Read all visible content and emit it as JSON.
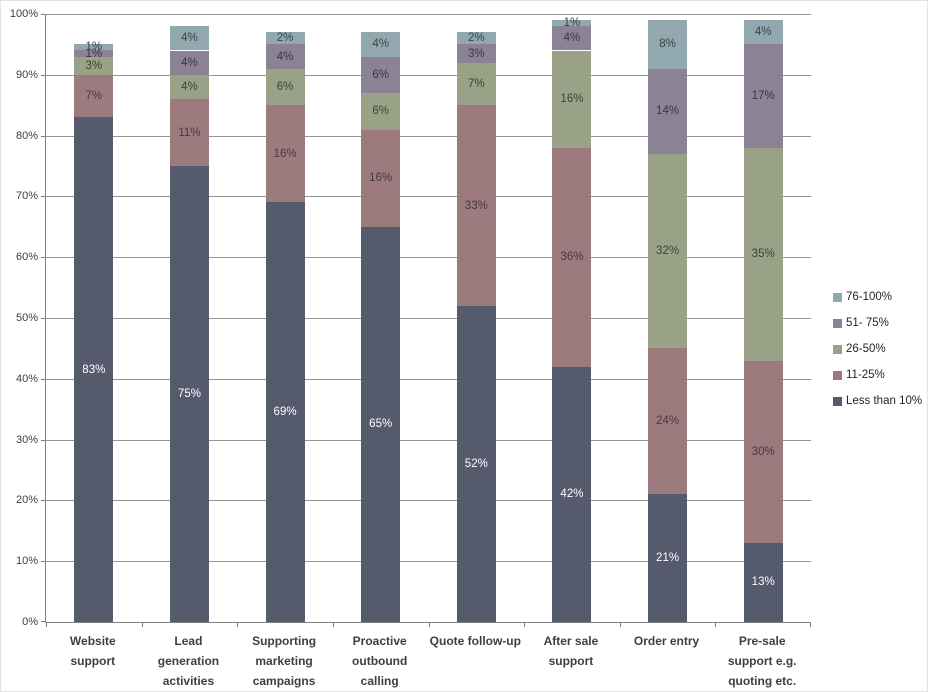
{
  "chart_data": {
    "type": "bar",
    "subtype": "stacked-column-percent",
    "title": "",
    "xlabel": "",
    "ylabel": "",
    "grid": true,
    "categories": [
      "Website support",
      "Lead generation activities",
      "Supporting marketing campaigns",
      "Proactive outbound calling",
      "Quote follow-up",
      "After sale support",
      "Order entry",
      "Pre-sale support e.g. quoting etc."
    ],
    "series": [
      {
        "name": "Less than 10%",
        "color": "#555b6d",
        "label_color": "#ffffff",
        "values": [
          83,
          75,
          69,
          65,
          52,
          42,
          21,
          13
        ]
      },
      {
        "name": "11-25%",
        "color": "#9c7a7e",
        "label_color": "#453a3c",
        "values": [
          7,
          11,
          16,
          16,
          33,
          36,
          24,
          30
        ]
      },
      {
        "name": "26-50%",
        "color": "#99a186",
        "label_color": "#3e4234",
        "values": [
          3,
          4,
          6,
          6,
          7,
          16,
          32,
          35
        ]
      },
      {
        "name": "51- 75%",
        "color": "#8c8296",
        "label_color": "#3a3640",
        "values": [
          1,
          4,
          4,
          6,
          3,
          4,
          14,
          17
        ]
      },
      {
        "name": "76-100%",
        "color": "#91a8ae",
        "label_color": "#3a4547",
        "values": [
          1,
          4,
          2,
          4,
          2,
          1,
          8,
          4
        ]
      }
    ],
    "data_label_suffix": "%",
    "y_axis": {
      "min": 0,
      "max": 100,
      "step": 10,
      "tick_labels": [
        "0%",
        "10%",
        "20%",
        "30%",
        "40%",
        "50%",
        "60%",
        "70%",
        "80%",
        "90%",
        "100%"
      ]
    },
    "legend": {
      "position": "right",
      "entries": [
        "76-100%",
        "51- 75%",
        "26-50%",
        "11-25%",
        "Less than 10%"
      ]
    },
    "axis_color": "#808080",
    "gridline_color": "#979797"
  }
}
